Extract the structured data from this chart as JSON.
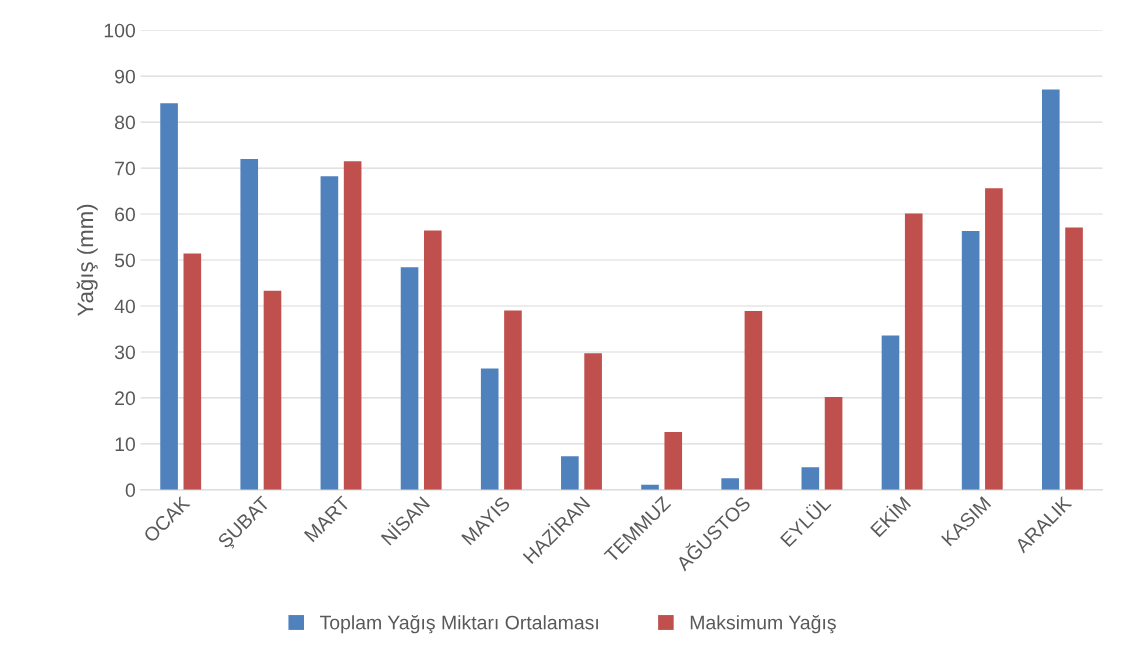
{
  "chart_data": {
    "type": "bar",
    "ylabel": "Yağış (mm)",
    "categories": [
      "OCAK",
      "ŞUBAT",
      "MART",
      "NİSAN",
      "MAYIS",
      "HAZİRAN",
      "TEMMUZ",
      "AĞUSTOS",
      "EYLÜL",
      "EKİM",
      "KASIM",
      "ARALIK"
    ],
    "series": [
      {
        "name": "Toplam Yağış Miktarı Ortalaması",
        "color": "#4f81bd",
        "values": [
          84.1,
          72.0,
          68.2,
          48.4,
          26.4,
          7.3,
          1.1,
          2.5,
          4.9,
          33.6,
          56.3,
          87.1
        ]
      },
      {
        "name": "Maksimum Yağış",
        "color": "#c0504d",
        "values": [
          51.4,
          43.3,
          71.5,
          56.4,
          39.0,
          29.7,
          12.6,
          38.9,
          20.2,
          60.1,
          65.6,
          57.1
        ]
      }
    ],
    "ylim": [
      0,
      100
    ],
    "yticks": [
      0,
      10,
      20,
      30,
      40,
      50,
      60,
      70,
      80,
      90,
      100
    ],
    "grid": "y",
    "legend": "bottom"
  }
}
